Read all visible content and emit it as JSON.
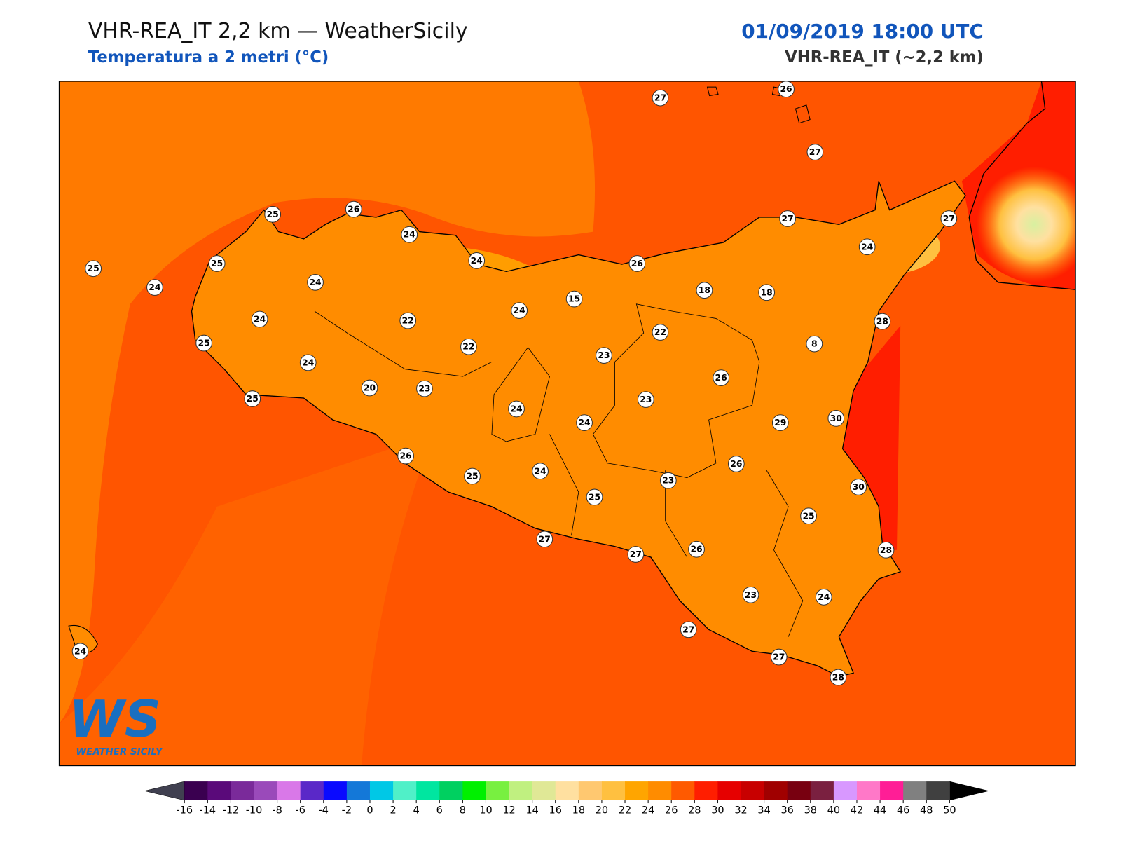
{
  "header": {
    "title": "VHR-REA_IT 2,2 km — WeatherSicily",
    "subtitle": "Temperatura a 2 metri (°C)",
    "datetime": "01/09/2019 18:00 UTC",
    "model": "VHR-REA_IT (~2,2 km)"
  },
  "logo": {
    "mark": "WS",
    "name": "WEATHER SICILY"
  },
  "stations": [
    27,
    26,
    27,
    25,
    26,
    24,
    24,
    26,
    27,
    27,
    24,
    25,
    25,
    24,
    24,
    24,
    15,
    18,
    18,
    24,
    22,
    22,
    28,
    8,
    25,
    22,
    23,
    24,
    26,
    20,
    23,
    25,
    23,
    24,
    24,
    29,
    30,
    26,
    26,
    25,
    24,
    23,
    30,
    25,
    25,
    27,
    27,
    26,
    28,
    23,
    24,
    27,
    27,
    28,
    24
  ],
  "colorbar": {
    "ticks": [
      -16,
      -14,
      -12,
      -10,
      -8,
      -6,
      -4,
      -2,
      0,
      2,
      4,
      6,
      8,
      10,
      12,
      14,
      16,
      18,
      20,
      22,
      24,
      26,
      28,
      30,
      32,
      34,
      36,
      38,
      40,
      42,
      44,
      46,
      48,
      50
    ],
    "colors": [
      "#3a0050",
      "#5a0a7a",
      "#7a2a9a",
      "#9a4aba",
      "#d978e8",
      "#5a28c8",
      "#0a0aff",
      "#1478d8",
      "#00c8e6",
      "#50f0c8",
      "#00e6a0",
      "#00d060",
      "#00f000",
      "#78f040",
      "#c0f080",
      "#e0e896",
      "#ffe0a0",
      "#ffc870",
      "#ffc040",
      "#ffa500",
      "#ff8c00",
      "#ff5a00",
      "#ff1e00",
      "#e60000",
      "#c80000",
      "#a00000",
      "#780010",
      "#7a2040",
      "#d898ff",
      "#ff78c8",
      "#ff1e96",
      "#808080",
      "#404040"
    ],
    "under_color": "#404050",
    "over_color": "#000000"
  }
}
